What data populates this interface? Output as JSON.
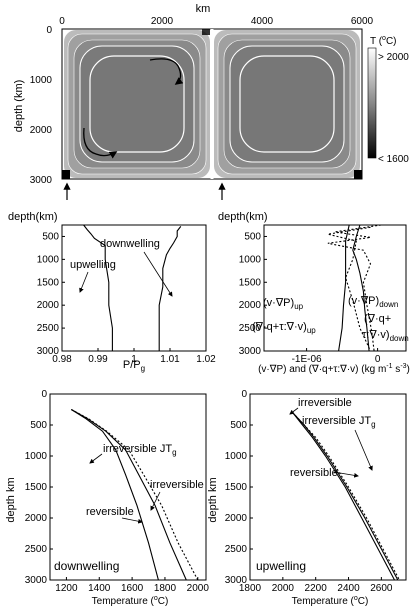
{
  "panel_top": {
    "x_axis_label": "km",
    "x_ticks": [
      "0",
      "2000",
      "4000",
      "6000"
    ],
    "y_axis_label": "depth (km)",
    "y_ticks": [
      "0",
      "1000",
      "2000",
      "3000"
    ],
    "colorbar": {
      "title_line1": "T (",
      "title_sup": "o",
      "title_line1_end": "C)",
      "max_label": "> 2000",
      "min_label": "< 1600"
    }
  },
  "panel_pressure": {
    "y_axis_label": "depth(km)",
    "y_ticks": [
      "500",
      "1000",
      "1500",
      "2000",
      "2500",
      "3000"
    ],
    "x_ticks": [
      "0.98",
      "0.99",
      "1",
      "1.01",
      "1.02"
    ],
    "x_label_main": "P/P",
    "x_label_sub": "g",
    "annotations": {
      "downwelling": "downwelling",
      "upwelling": "upwelling"
    }
  },
  "panel_terms": {
    "y_axis_label": "depth(km)",
    "y_ticks": [
      "500",
      "1000",
      "1500",
      "2000",
      "2500",
      "3000"
    ],
    "x_ticks": [
      "-1E-06",
      "0"
    ],
    "x_label": "(v·∇P) and (∇·q+τ:∇·v) (kg m",
    "x_label_sup1": "-1",
    "x_label_mid": " s",
    "x_label_sup2": "-3",
    "x_label_end": ")",
    "annotations": {
      "vp_down": "(v·∇P)",
      "vp_down_sub": "down",
      "vp_up": "(v·∇P)",
      "vp_up_sub": "up",
      "dq_down_1": "(∇·q+",
      "dq_down_2": "τ:∇·v)",
      "dq_down_sub": "down",
      "dq_up": "(∇·q+τ:∇·v)",
      "dq_up_sub": "up"
    }
  },
  "panel_down": {
    "y_axis_label": "depth km",
    "y_ticks": [
      "0",
      "500",
      "1000",
      "1500",
      "2000",
      "2500",
      "3000"
    ],
    "x_ticks": [
      "1200",
      "1400",
      "1600",
      "1800",
      "2000"
    ],
    "x_label": "Temperature (",
    "x_label_sup": "o",
    "x_label_end": "C)",
    "corner_label": "downwelling",
    "annotations": {
      "irrev_jt": "irreversible JT",
      "irrev_jt_sub": "g",
      "irrev": "irreversible",
      "rev": "reversible"
    }
  },
  "panel_up": {
    "y_axis_label": "depth km",
    "y_ticks": [
      "0",
      "500",
      "1000",
      "1500",
      "2000",
      "2500",
      "3000"
    ],
    "x_ticks": [
      "1800",
      "2000",
      "2200",
      "2400",
      "2600"
    ],
    "x_label": "Temperature (",
    "x_label_sup": "o",
    "x_label_end": "C)",
    "corner_label": "upwelling",
    "annotations": {
      "irrev": "irreversible",
      "irrev_jt": "irreversible JT",
      "irrev_jt_sub": "g",
      "rev": "reversible"
    }
  },
  "chart_data": [
    {
      "type": "heatmap",
      "xlabel": "km",
      "ylabel": "depth (km)",
      "xlim": [
        0,
        6000
      ],
      "ylim": [
        3000,
        0
      ],
      "colorbar": {
        "label": "T (oC)",
        "range_labels": [
          "> 2000",
          "< 1600"
        ]
      },
      "description_cells": "two counter-rotating convection cells"
    },
    {
      "type": "line",
      "xlabel": "P/Pg",
      "ylabel": "depth(km)",
      "xlim": [
        0.98,
        1.02
      ],
      "ylim": [
        3000,
        250
      ],
      "series": [
        {
          "name": "upwelling",
          "points": [
            [
              0.986,
              250
            ],
            [
              0.987,
              350
            ],
            [
              0.988,
              440
            ],
            [
              0.989,
              540
            ],
            [
              0.992,
              700
            ],
            [
              0.992,
              1000
            ],
            [
              0.993,
              1500
            ],
            [
              0.993,
              2000
            ],
            [
              0.994,
              2500
            ],
            [
              0.994,
              3000
            ]
          ]
        },
        {
          "name": "downwelling",
          "points": [
            [
              1.013,
              280
            ],
            [
              1.012,
              380
            ],
            [
              1.012,
              500
            ],
            [
              1.011,
              640
            ],
            [
              1.01,
              760
            ],
            [
              1.009,
              900
            ],
            [
              1.008,
              1200
            ],
            [
              1.008,
              1600
            ],
            [
              1.007,
              2000
            ],
            [
              1.007,
              2500
            ],
            [
              1.007,
              3000
            ]
          ]
        }
      ]
    },
    {
      "type": "line",
      "xlabel": "(v·∇P) and (∇·q+τ:∇·v) (kg m-1 s-3)",
      "ylabel": "depth(km)",
      "xlim": [
        -1.6e-06,
        4e-07
      ],
      "ylim": [
        3000,
        250
      ],
      "series": [
        {
          "name": "(v·∇P)down",
          "points": [
            [
              -2.5e-07,
              250
            ],
            [
              -3e-07,
              500
            ],
            [
              -3.5e-07,
              800
            ],
            [
              -3e-07,
              1000
            ],
            [
              -2.5e-07,
              1300
            ],
            [
              -2e-07,
              1700
            ],
            [
              -1.8e-07,
              2100
            ],
            [
              -1.5e-07,
              2500
            ],
            [
              -1.2e-07,
              3000
            ]
          ]
        },
        {
          "name": "(v·∇P)up",
          "points": [
            [
              -4e-07,
              250
            ],
            [
              -4.5e-07,
              600
            ],
            [
              -4.5e-07,
              1000
            ],
            [
              -4.5e-07,
              1500
            ],
            [
              -4.8e-07,
              2000
            ],
            [
              -5e-07,
              2500
            ],
            [
              -5.5e-07,
              3000
            ]
          ]
        },
        {
          "name": "(∇·q+τ:∇·v)down",
          "points": [
            [
              5e-08,
              250
            ],
            [
              -6e-07,
              400
            ],
            [
              -1e-07,
              520
            ],
            [
              -7e-07,
              650
            ],
            [
              -2e-07,
              800
            ],
            [
              -1e-07,
              1100
            ],
            [
              -2e-07,
              1500
            ],
            [
              -1.5e-07,
              2000
            ],
            [
              -8e-08,
              2600
            ],
            [
              -5e-08,
              3000
            ]
          ]
        },
        {
          "name": "(∇·q+τ:∇·v)up",
          "points": [
            [
              -1e-07,
              300
            ],
            [
              -7e-07,
              450
            ],
            [
              -3e-07,
              600
            ],
            [
              -3.5e-07,
              1000
            ],
            [
              -4.5e-07,
              1400
            ],
            [
              -3.5e-07,
              1900
            ],
            [
              -2.5e-07,
              2500
            ],
            [
              -1e-07,
              3000
            ]
          ]
        }
      ]
    },
    {
      "type": "line",
      "xlabel": "Temperature (oC)",
      "ylabel": "depth km",
      "xlim": [
        1100,
        2050
      ],
      "ylim": [
        3000,
        0
      ],
      "series": [
        {
          "name": "reversible",
          "points": [
            [
              1230,
              250
            ],
            [
              1320,
              400
            ],
            [
              1420,
              600
            ],
            [
              1500,
              900
            ],
            [
              1560,
              1300
            ],
            [
              1630,
              1800
            ],
            [
              1700,
              2400
            ],
            [
              1760,
              3000
            ]
          ]
        },
        {
          "name": "irreversible",
          "points": [
            [
              1230,
              250
            ],
            [
              1330,
              400
            ],
            [
              1440,
              600
            ],
            [
              1560,
              900
            ],
            [
              1640,
              1300
            ],
            [
              1740,
              1800
            ],
            [
              1830,
              2400
            ],
            [
              1930,
              3000
            ]
          ]
        },
        {
          "name": "irreversible JTg",
          "points": [
            [
              1230,
              250
            ],
            [
              1335,
              400
            ],
            [
              1445,
              600
            ],
            [
              1580,
              900
            ],
            [
              1670,
              1300
            ],
            [
              1780,
              1800
            ],
            [
              1880,
              2400
            ],
            [
              2000,
              3000
            ]
          ]
        }
      ]
    },
    {
      "type": "line",
      "xlabel": "Temperature (oC)",
      "ylabel": "depth km",
      "xlim": [
        1800,
        2750
      ],
      "ylim": [
        3000,
        0
      ],
      "series": [
        {
          "name": "reversible",
          "points": [
            [
              2060,
              300
            ],
            [
              2120,
              500
            ],
            [
              2180,
              700
            ],
            [
              2260,
              1000
            ],
            [
              2380,
              1500
            ],
            [
              2480,
              2000
            ],
            [
              2580,
              2500
            ],
            [
              2680,
              3000
            ]
          ]
        },
        {
          "name": "irreversible",
          "points": [
            [
              2060,
              300
            ],
            [
              2130,
              500
            ],
            [
              2190,
              700
            ],
            [
              2270,
              1000
            ],
            [
              2390,
              1500
            ],
            [
              2500,
              2000
            ],
            [
              2600,
              2500
            ],
            [
              2700,
              3000
            ]
          ]
        },
        {
          "name": "irreversible JTg",
          "points": [
            [
              2060,
              300
            ],
            [
              2130,
              500
            ],
            [
              2200,
              700
            ],
            [
              2280,
              1000
            ],
            [
              2400,
              1500
            ],
            [
              2510,
              2000
            ],
            [
              2610,
              2500
            ],
            [
              2710,
              3000
            ]
          ]
        }
      ]
    }
  ]
}
